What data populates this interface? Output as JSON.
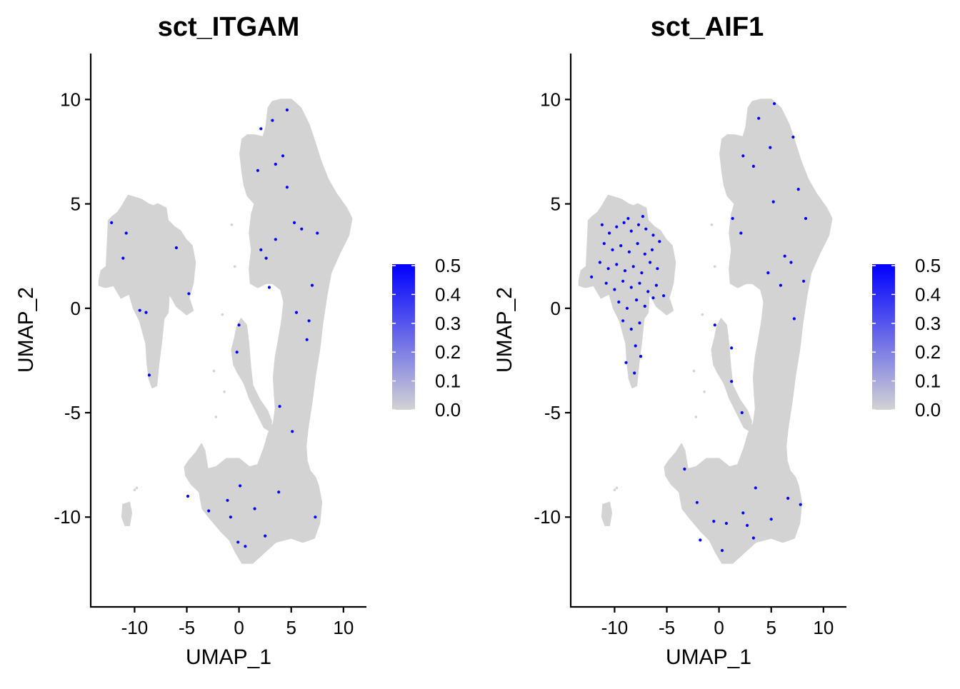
{
  "chart_data": [
    {
      "type": "scatter",
      "title": "sct_ITGAM",
      "xlabel": "UMAP_1",
      "ylabel": "UMAP_2",
      "xlim": [
        -14.2,
        12.2
      ],
      "ylim": [
        -14.3,
        12.2
      ],
      "xticks": [
        -10,
        -5,
        0,
        5,
        10
      ],
      "yticks": [
        -10,
        -5,
        0,
        5,
        10
      ],
      "xtick_labels": [
        "-10",
        "-5",
        "0",
        "5",
        "10"
      ],
      "ytick_labels": [
        "-10",
        "-5",
        "0",
        "5",
        "10"
      ],
      "grid": false,
      "legend": {
        "placement": "right",
        "range": [
          0,
          0.5
        ],
        "ticks": [
          "0.5",
          "0.4",
          "0.3",
          "0.2",
          "0.1",
          "0.0"
        ],
        "low_color": "#d3d3d3",
        "high_color": "#0000ff"
      },
      "background_color": "#d3d3d3",
      "highlight_color": "#0000ff",
      "expressing_cells": [
        [
          2.1,
          8.6
        ],
        [
          3.2,
          9.0
        ],
        [
          4.6,
          9.5
        ],
        [
          1.8,
          6.6
        ],
        [
          3.5,
          6.9
        ],
        [
          4.2,
          7.3
        ],
        [
          7.5,
          3.6
        ],
        [
          5.3,
          4.1
        ],
        [
          2.1,
          2.8
        ],
        [
          2.6,
          2.4
        ],
        [
          7.0,
          1.1
        ],
        [
          5.5,
          -0.2
        ],
        [
          6.7,
          -0.6
        ],
        [
          0.0,
          -0.8
        ],
        [
          -0.2,
          -2.1
        ],
        [
          6.5,
          -1.5
        ],
        [
          3.9,
          -4.7
        ],
        [
          5.1,
          -5.9
        ],
        [
          3.5,
          3.3
        ],
        [
          6.0,
          3.8
        ],
        [
          2.9,
          1.0
        ],
        [
          4.6,
          5.8
        ],
        [
          -10.8,
          3.6
        ],
        [
          -11.1,
          2.4
        ],
        [
          -6.0,
          2.9
        ],
        [
          -9.5,
          -0.1
        ],
        [
          -8.9,
          -0.2
        ],
        [
          -4.8,
          0.7
        ],
        [
          -12.2,
          4.1
        ],
        [
          -8.6,
          -3.2
        ],
        [
          -4.9,
          -9.0
        ],
        [
          -2.9,
          -9.7
        ],
        [
          -1.1,
          -9.2
        ],
        [
          0.1,
          -8.5
        ],
        [
          -0.8,
          -10.0
        ],
        [
          -0.1,
          -11.2
        ],
        [
          1.5,
          -9.6
        ],
        [
          2.5,
          -10.9
        ],
        [
          7.3,
          -10.0
        ],
        [
          3.8,
          -8.8
        ],
        [
          0.6,
          -11.4
        ]
      ]
    },
    {
      "type": "scatter",
      "title": "sct_AIF1",
      "xlabel": "UMAP_1",
      "ylabel": "UMAP_2",
      "xlim": [
        -14.2,
        12.2
      ],
      "ylim": [
        -14.3,
        12.2
      ],
      "xticks": [
        -10,
        -5,
        0,
        5,
        10
      ],
      "yticks": [
        -10,
        -5,
        0,
        5,
        10
      ],
      "xtick_labels": [
        "-10",
        "-5",
        "0",
        "5",
        "10"
      ],
      "ytick_labels": [
        "-10",
        "-5",
        "0",
        "5",
        "10"
      ],
      "grid": false,
      "legend": {
        "placement": "right",
        "range": [
          0,
          0.5
        ],
        "ticks": [
          "0.5",
          "0.4",
          "0.3",
          "0.2",
          "0.1",
          "0.0"
        ],
        "low_color": "#d3d3d3",
        "high_color": "#0000ff"
      },
      "background_color": "#d3d3d3",
      "highlight_color": "#0000ff",
      "expressing_cells": [
        [
          -11.2,
          4.0
        ],
        [
          -10.5,
          3.6
        ],
        [
          -9.8,
          3.9
        ],
        [
          -9.1,
          4.1
        ],
        [
          -8.4,
          3.7
        ],
        [
          -7.7,
          4.0
        ],
        [
          -7.0,
          3.8
        ],
        [
          -6.3,
          3.5
        ],
        [
          -11.0,
          3.1
        ],
        [
          -10.2,
          2.8
        ],
        [
          -9.4,
          3.0
        ],
        [
          -8.6,
          2.7
        ],
        [
          -7.8,
          3.1
        ],
        [
          -7.1,
          2.6
        ],
        [
          -6.4,
          2.8
        ],
        [
          -5.7,
          3.2
        ],
        [
          -11.4,
          2.2
        ],
        [
          -10.6,
          1.9
        ],
        [
          -9.8,
          2.1
        ],
        [
          -9.0,
          1.8
        ],
        [
          -8.2,
          2.0
        ],
        [
          -7.4,
          1.7
        ],
        [
          -6.6,
          2.2
        ],
        [
          -5.9,
          1.9
        ],
        [
          -10.8,
          1.2
        ],
        [
          -10.0,
          0.9
        ],
        [
          -9.2,
          1.3
        ],
        [
          -8.4,
          1.0
        ],
        [
          -7.6,
          1.2
        ],
        [
          -6.8,
          0.8
        ],
        [
          -6.0,
          1.1
        ],
        [
          -9.6,
          0.3
        ],
        [
          -8.8,
          0.0
        ],
        [
          -7.9,
          0.4
        ],
        [
          -7.1,
          0.1
        ],
        [
          -6.3,
          0.5
        ],
        [
          -5.3,
          0.6
        ],
        [
          -8.7,
          4.3
        ],
        [
          -7.3,
          4.4
        ],
        [
          -12.2,
          1.5
        ],
        [
          -9.2,
          -0.6
        ],
        [
          -8.4,
          -1.0
        ],
        [
          -7.6,
          -0.7
        ],
        [
          -8.0,
          -1.8
        ],
        [
          -7.5,
          -2.3
        ],
        [
          -8.9,
          -2.6
        ],
        [
          -8.1,
          -3.1
        ],
        [
          -3.3,
          -7.7
        ],
        [
          -2.1,
          -9.3
        ],
        [
          -0.5,
          -10.2
        ],
        [
          0.7,
          -10.3
        ],
        [
          2.3,
          -9.8
        ],
        [
          3.5,
          -8.6
        ],
        [
          6.6,
          -9.1
        ],
        [
          7.8,
          -9.4
        ],
        [
          2.7,
          -10.4
        ],
        [
          -1.8,
          -11.1
        ],
        [
          0.3,
          -11.6
        ],
        [
          5.0,
          -10.1
        ],
        [
          3.3,
          -11.0
        ],
        [
          5.3,
          9.8
        ],
        [
          3.8,
          9.1
        ],
        [
          4.9,
          7.7
        ],
        [
          7.1,
          8.2
        ],
        [
          2.3,
          7.3
        ],
        [
          3.3,
          6.8
        ],
        [
          7.6,
          5.7
        ],
        [
          8.3,
          4.3
        ],
        [
          1.3,
          4.3
        ],
        [
          2.1,
          3.6
        ],
        [
          6.3,
          2.5
        ],
        [
          4.7,
          1.7
        ],
        [
          6.9,
          2.2
        ],
        [
          7.2,
          -0.5
        ],
        [
          5.9,
          1.1
        ],
        [
          1.2,
          -1.9
        ],
        [
          -0.4,
          -0.8
        ],
        [
          1.2,
          -3.5
        ],
        [
          2.2,
          -5.0
        ],
        [
          5.2,
          5.1
        ],
        [
          8.1,
          1.3
        ]
      ]
    }
  ]
}
